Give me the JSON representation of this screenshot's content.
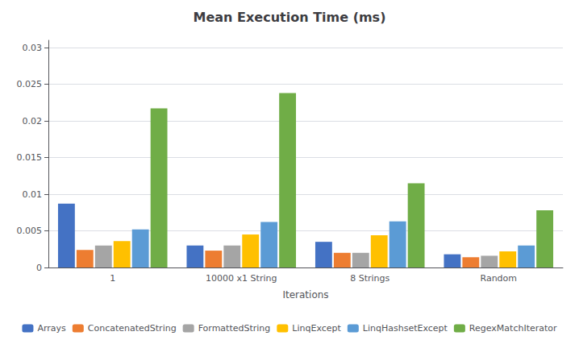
{
  "chart_data": {
    "type": "bar",
    "title": "Mean Execution Time (ms)",
    "xlabel": "Iterations",
    "categories": [
      "1",
      "10000 x1 String",
      "8 Strings",
      "Random"
    ],
    "series": [
      {
        "name": "Arrays",
        "color": "#4472C4",
        "values": [
          0.0087,
          0.003,
          0.0035,
          0.0018
        ]
      },
      {
        "name": "ConcatenatedString",
        "color": "#ED7D31",
        "values": [
          0.0024,
          0.0023,
          0.002,
          0.0014
        ]
      },
      {
        "name": "FormattedString",
        "color": "#A5A5A5",
        "values": [
          0.003,
          0.003,
          0.002,
          0.0016
        ]
      },
      {
        "name": "LinqExcept",
        "color": "#FFC000",
        "values": [
          0.0036,
          0.0045,
          0.0044,
          0.0022
        ]
      },
      {
        "name": "LinqHashsetExcept",
        "color": "#5B9BD5",
        "values": [
          0.0052,
          0.0062,
          0.0063,
          0.003
        ]
      },
      {
        "name": "RegexMatchIterator",
        "color": "#70AD47",
        "values": [
          0.0217,
          0.0238,
          0.0115,
          0.0078
        ]
      }
    ],
    "ylim": [
      0,
      0.031
    ],
    "yticks": [
      0,
      0.005,
      0.01,
      0.015,
      0.02,
      0.025,
      0.03
    ],
    "grid": true,
    "legend": "bottom"
  }
}
